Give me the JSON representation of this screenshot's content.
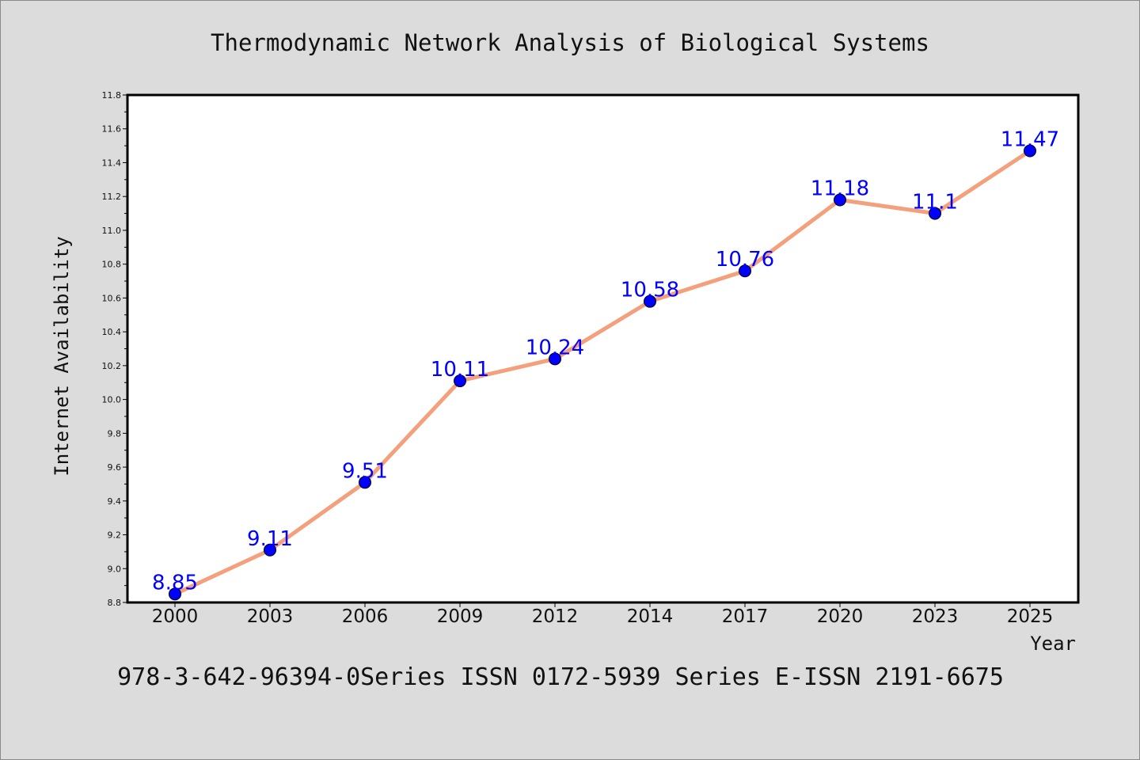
{
  "chart_data": {
    "type": "line",
    "title": "Thermodynamic Network Analysis of Biological Systems",
    "xlabel": "Year",
    "ylabel": "Internet Availability",
    "categories": [
      "2000",
      "2003",
      "2006",
      "2009",
      "2012",
      "2014",
      "2017",
      "2020",
      "2023",
      "2025"
    ],
    "series": [
      {
        "values": [
          8.85,
          9.11,
          9.51,
          10.11,
          10.24,
          10.58,
          10.76,
          11.18,
          11.1,
          11.47
        ],
        "data_labels": [
          "8.85",
          "9.11",
          "9.51",
          "10.11",
          "10.24",
          "10.58",
          "10.76",
          "11.18",
          "11.1",
          "11.47"
        ],
        "line_color": "#f4a07c",
        "marker_color": "#0000ff",
        "label_color": "#0000ff"
      }
    ],
    "ylim": [
      8.8,
      11.8
    ],
    "yticks": [
      "8.8",
      "9.0",
      "9.2",
      "9.4",
      "9.6",
      "9.8",
      "10.0",
      "10.2",
      "10.4",
      "10.6",
      "10.8",
      "11.0",
      "11.2",
      "11.4",
      "11.6",
      "11.8"
    ],
    "grid": false,
    "legend": "none"
  },
  "footer": {
    "text": "978-3-642-96394-0Series ISSN 0172-5939 Series E-ISSN 2191-6675"
  }
}
